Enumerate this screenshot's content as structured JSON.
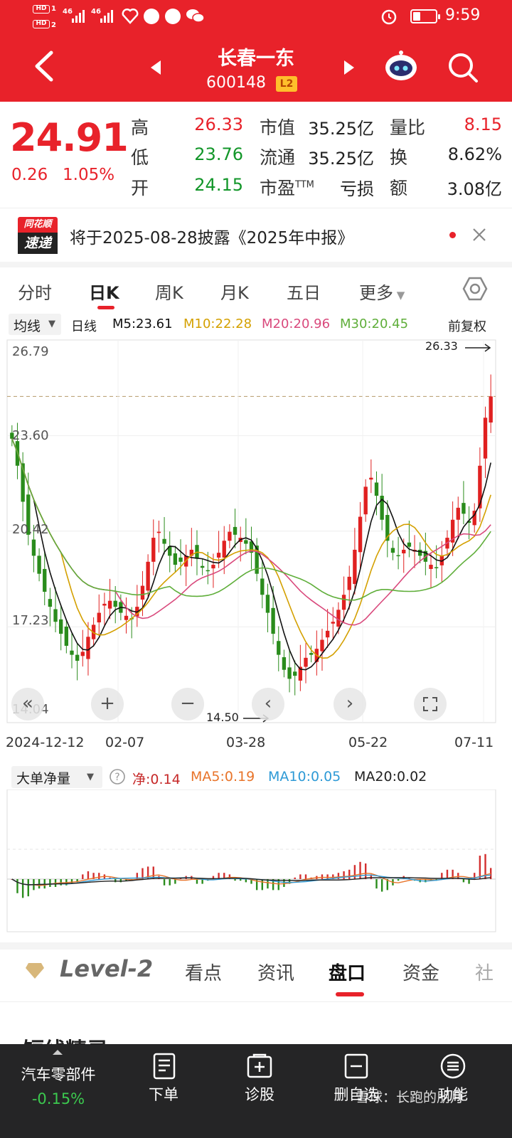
{
  "status_bar": {
    "hd1": "HD",
    "hd1_sub": "1",
    "hd2": "HD",
    "hd2_sub": "2",
    "sig1": "46",
    "sig2": "46",
    "time": "9:59"
  },
  "header": {
    "stock_name": "长春一东",
    "stock_code": "600148",
    "level_badge": "L2"
  },
  "quote": {
    "price": "24.91",
    "change": "0.26",
    "change_pct": "1.05%",
    "high_label": "高",
    "high": "26.33",
    "low_label": "低",
    "low": "23.76",
    "open_label": "开",
    "open": "24.15",
    "mktcap_label": "市值",
    "mktcap": "35.25亿",
    "float_label": "流通",
    "float": "35.25亿",
    "pe_label": "市盈",
    "pe_tm": "TTM",
    "pe": "亏损",
    "vol_ratio_label": "量比",
    "vol_ratio": "8.15",
    "turnover_label": "换",
    "turnover": "8.62%",
    "amount_label": "额",
    "amount": "3.08亿"
  },
  "news": {
    "logo_line1": "同花顺",
    "logo_line2": "速递",
    "text": "将于2025-08-28披露《2025年中报》"
  },
  "tabs": [
    {
      "label": "分时"
    },
    {
      "label": "日K"
    },
    {
      "label": "周K"
    },
    {
      "label": "月K"
    },
    {
      "label": "五日"
    },
    {
      "label": "更多"
    }
  ],
  "chart_header": {
    "selector": "均线",
    "period": "日线",
    "m5": "M5:23.61",
    "m10": "M10:22.28",
    "m20": "M20:20.96",
    "m30": "M30:20.45",
    "adjust": "前复权"
  },
  "colors": {
    "header_red": "#e8222a",
    "up": "#e02020",
    "down": "#2a8c1c",
    "m5": "#111111",
    "m10": "#d4a000",
    "m20": "#d9497c",
    "m30": "#5fae3a"
  },
  "kline_axis": {
    "y_ticks": [
      "26.79",
      "23.60",
      "20.42",
      "17.23",
      "14.04"
    ],
    "high_mark": "26.33",
    "low_mark": "14.50",
    "dates": [
      "2024-12-12",
      "02-07",
      "03-28",
      "05-22",
      "07-11"
    ]
  },
  "chart_data": {
    "type": "candlestick",
    "ylim": [
      14.04,
      26.79
    ],
    "y_ticks": [
      26.79,
      23.6,
      20.42,
      17.23,
      14.04
    ],
    "x_ticks": [
      "2024-12-12",
      "02-07",
      "03-28",
      "05-22",
      "07-11"
    ],
    "max_mark": 26.33,
    "min_mark": 14.5,
    "last_close": 24.91,
    "series": [
      {
        "name": "M5",
        "last": 23.61
      },
      {
        "name": "M10",
        "last": 22.28
      },
      {
        "name": "M20",
        "last": 20.96
      },
      {
        "name": "M30",
        "last": 20.45
      }
    ],
    "close": [
      23.5,
      22.6,
      21.4,
      20.3,
      19.6,
      19.0,
      18.4,
      17.9,
      17.4,
      17.0,
      16.6,
      16.3,
      16.1,
      16.4,
      16.9,
      17.3,
      17.7,
      18.0,
      18.1,
      17.9,
      17.7,
      17.6,
      17.5,
      17.9,
      18.6,
      19.4,
      20.2,
      20.4,
      20.0,
      19.6,
      19.3,
      19.4,
      19.6,
      19.8,
      19.5,
      19.2,
      19.1,
      19.3,
      19.7,
      20.1,
      20.4,
      20.3,
      20.2,
      20.0,
      19.7,
      19.0,
      18.3,
      17.7,
      17.0,
      16.3,
      15.8,
      15.5,
      15.6,
      15.9,
      16.2,
      16.3,
      16.5,
      16.8,
      17.1,
      17.4,
      17.8,
      18.3,
      18.9,
      19.8,
      20.9,
      21.9,
      22.2,
      21.6,
      20.8,
      20.1,
      19.7,
      19.6,
      19.8,
      19.9,
      19.8,
      19.6,
      19.4,
      19.3,
      19.2,
      19.6,
      20.2,
      20.8,
      21.2,
      21.0,
      20.7,
      21.1,
      22.6,
      24.2,
      24.91
    ],
    "indicator": {
      "name": "大单净量",
      "net": 0.14,
      "ma5": 0.19,
      "ma10": 0.05,
      "ma20": 0.02
    }
  },
  "indicator_bar": {
    "selector": "大单净量",
    "net": "净:0.14",
    "ma5": "MA5:0.19",
    "ma10": "MA10:0.05",
    "ma20": "MA20:0.02"
  },
  "level2_tabs": {
    "brand": "Level-2",
    "items": [
      "看点",
      "资讯",
      "盘口",
      "资金",
      "社"
    ]
  },
  "section_hint": "短线精灵",
  "bottom_bar": {
    "sector_name": "汽车零部件",
    "sector_change": "-0.15%",
    "items": [
      "下单",
      "诊股",
      "删自选",
      "功能"
    ],
    "watermark": "雪球：长跑的朋月"
  }
}
